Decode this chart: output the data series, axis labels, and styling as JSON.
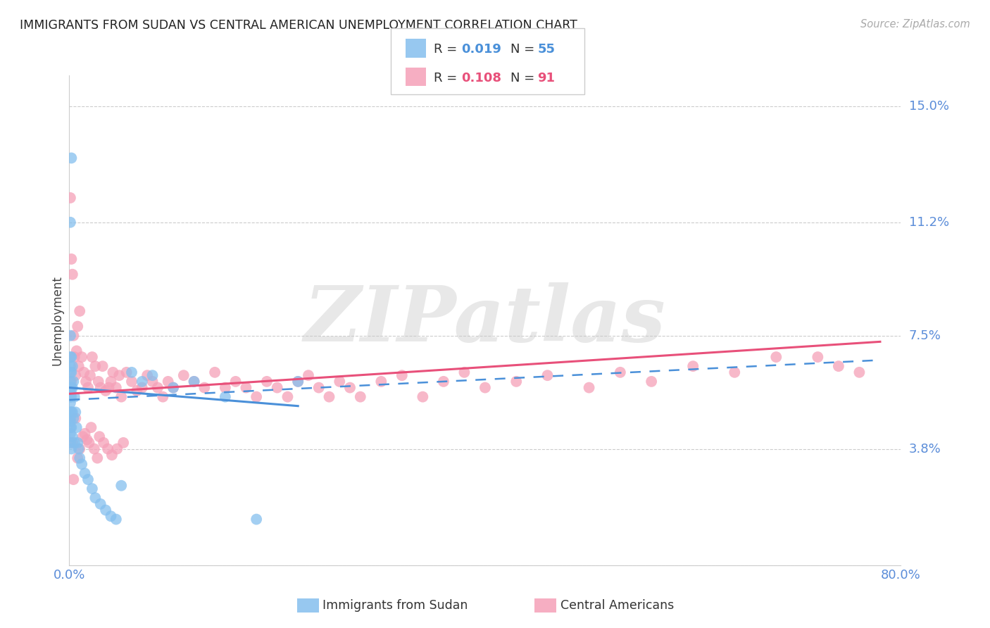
{
  "title": "IMMIGRANTS FROM SUDAN VS CENTRAL AMERICAN UNEMPLOYMENT CORRELATION CHART",
  "source": "Source: ZipAtlas.com",
  "ylabel": "Unemployment",
  "xlim": [
    0,
    0.8
  ],
  "ylim": [
    0,
    0.16
  ],
  "yticks": [
    0.0,
    0.038,
    0.075,
    0.112,
    0.15
  ],
  "ytick_labels": [
    "",
    "3.8%",
    "7.5%",
    "11.2%",
    "15.0%"
  ],
  "watermark": "ZIPatlas",
  "blue_color": "#85bfee",
  "pink_color": "#f5a0b8",
  "blue_line_color": "#4a90d9",
  "pink_line_color": "#e8507a",
  "axis_label_color": "#5b8dd9",
  "title_color": "#222222",
  "grid_color": "#cccccc",
  "background_color": "#ffffff",
  "sudan_x": [
    0.001,
    0.001,
    0.001,
    0.001,
    0.001,
    0.001,
    0.001,
    0.001,
    0.001,
    0.001,
    0.001,
    0.001,
    0.001,
    0.001,
    0.001,
    0.001,
    0.002,
    0.002,
    0.002,
    0.002,
    0.002,
    0.002,
    0.002,
    0.002,
    0.003,
    0.003,
    0.003,
    0.003,
    0.004,
    0.004,
    0.005,
    0.005,
    0.006,
    0.007,
    0.008,
    0.009,
    0.01,
    0.012,
    0.015,
    0.018,
    0.022,
    0.025,
    0.03,
    0.035,
    0.04,
    0.045,
    0.05,
    0.06,
    0.07,
    0.08,
    0.1,
    0.12,
    0.15,
    0.18,
    0.22
  ],
  "sudan_y": [
    0.075,
    0.112,
    0.068,
    0.065,
    0.063,
    0.06,
    0.058,
    0.056,
    0.055,
    0.053,
    0.05,
    0.048,
    0.047,
    0.045,
    0.043,
    0.04,
    0.133,
    0.068,
    0.063,
    0.058,
    0.055,
    0.05,
    0.045,
    0.038,
    0.065,
    0.058,
    0.05,
    0.042,
    0.06,
    0.048,
    0.055,
    0.04,
    0.05,
    0.045,
    0.04,
    0.038,
    0.035,
    0.033,
    0.03,
    0.028,
    0.025,
    0.022,
    0.02,
    0.018,
    0.016,
    0.015,
    0.026,
    0.063,
    0.06,
    0.062,
    0.058,
    0.06,
    0.055,
    0.015,
    0.06
  ],
  "central_x": [
    0.001,
    0.002,
    0.002,
    0.003,
    0.004,
    0.005,
    0.006,
    0.007,
    0.008,
    0.009,
    0.01,
    0.012,
    0.014,
    0.016,
    0.018,
    0.02,
    0.022,
    0.025,
    0.028,
    0.03,
    0.032,
    0.035,
    0.038,
    0.04,
    0.042,
    0.045,
    0.048,
    0.05,
    0.055,
    0.06,
    0.065,
    0.07,
    0.075,
    0.08,
    0.085,
    0.09,
    0.095,
    0.1,
    0.11,
    0.12,
    0.13,
    0.14,
    0.15,
    0.16,
    0.17,
    0.18,
    0.19,
    0.2,
    0.21,
    0.22,
    0.23,
    0.24,
    0.25,
    0.26,
    0.27,
    0.28,
    0.3,
    0.32,
    0.34,
    0.36,
    0.38,
    0.4,
    0.43,
    0.46,
    0.5,
    0.53,
    0.56,
    0.6,
    0.64,
    0.68,
    0.72,
    0.74,
    0.76,
    0.003,
    0.004,
    0.006,
    0.008,
    0.01,
    0.013,
    0.015,
    0.017,
    0.019,
    0.021,
    0.024,
    0.027,
    0.029,
    0.033,
    0.037,
    0.041,
    0.046,
    0.052
  ],
  "central_y": [
    0.12,
    0.1,
    0.06,
    0.095,
    0.075,
    0.068,
    0.062,
    0.07,
    0.078,
    0.065,
    0.083,
    0.068,
    0.063,
    0.06,
    0.058,
    0.062,
    0.068,
    0.065,
    0.06,
    0.058,
    0.065,
    0.057,
    0.058,
    0.06,
    0.063,
    0.058,
    0.062,
    0.055,
    0.063,
    0.06,
    0.057,
    0.058,
    0.062,
    0.06,
    0.058,
    0.055,
    0.06,
    0.058,
    0.062,
    0.06,
    0.058,
    0.063,
    0.058,
    0.06,
    0.058,
    0.055,
    0.06,
    0.058,
    0.055,
    0.06,
    0.062,
    0.058,
    0.055,
    0.06,
    0.058,
    0.055,
    0.06,
    0.062,
    0.055,
    0.06,
    0.063,
    0.058,
    0.06,
    0.062,
    0.058,
    0.063,
    0.06,
    0.065,
    0.063,
    0.068,
    0.068,
    0.065,
    0.063,
    0.04,
    0.028,
    0.048,
    0.035,
    0.038,
    0.042,
    0.043,
    0.041,
    0.04,
    0.045,
    0.038,
    0.035,
    0.042,
    0.04,
    0.038,
    0.036,
    0.038,
    0.04
  ],
  "sudan_line_x0": 0.0,
  "sudan_line_x1": 0.22,
  "sudan_line_y0": 0.058,
  "sudan_line_y1": 0.052,
  "dashed_line_x0": 0.0,
  "dashed_line_x1": 0.78,
  "dashed_line_y0": 0.054,
  "dashed_line_y1": 0.067,
  "pink_line_x0": 0.0,
  "pink_line_x1": 0.78,
  "pink_line_y0": 0.056,
  "pink_line_y1": 0.073
}
